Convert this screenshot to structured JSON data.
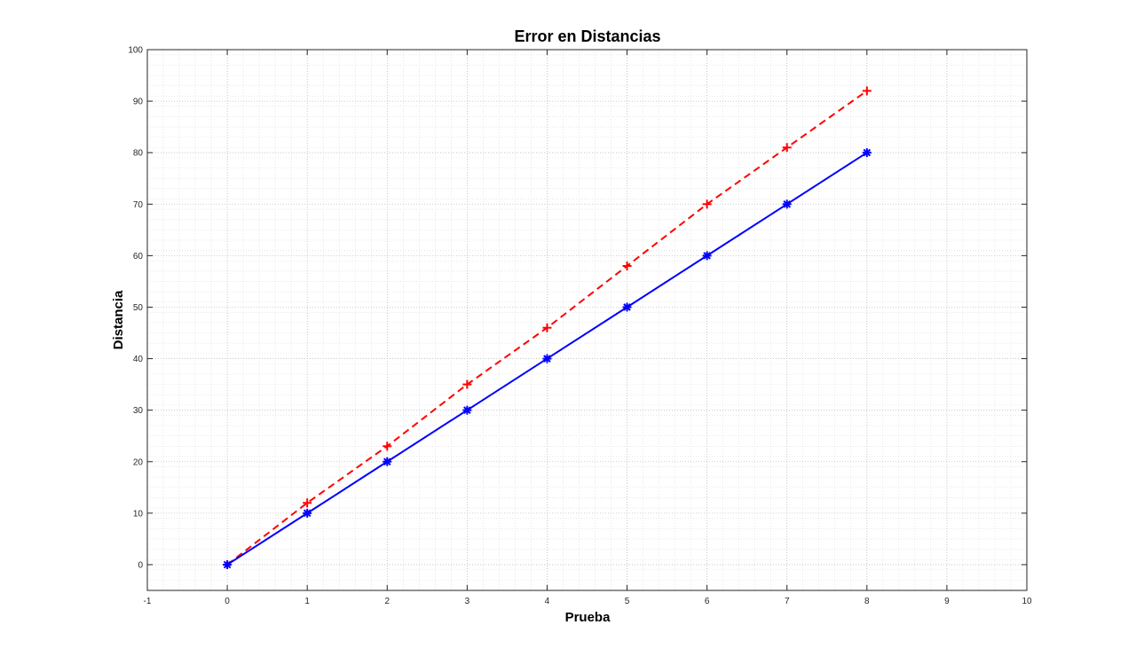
{
  "chart_data": {
    "type": "line",
    "title": "Error en Distancias",
    "xlabel": "Prueba",
    "ylabel": "Distancia",
    "xlim": [
      -1,
      10
    ],
    "ylim": [
      -5,
      100
    ],
    "x_ticks": [
      -1,
      0,
      1,
      2,
      3,
      4,
      5,
      6,
      7,
      8,
      9,
      10
    ],
    "x_tick_labels": [
      "-1",
      "0",
      "1",
      "2",
      "3",
      "4",
      "5",
      "6",
      "7",
      "8",
      "9",
      "10"
    ],
    "y_ticks": [
      0,
      10,
      20,
      30,
      40,
      50,
      60,
      70,
      80,
      90,
      100
    ],
    "y_tick_labels": [
      "0",
      "10",
      "20",
      "30",
      "40",
      "50",
      "60",
      "70",
      "80",
      "90",
      "100"
    ],
    "grid": "major and minor, dotted",
    "legend": "none",
    "x": [
      0,
      1,
      2,
      3,
      4,
      5,
      6,
      7,
      8
    ],
    "series": [
      {
        "values": [
          0,
          12,
          23,
          35,
          46,
          58,
          70,
          81,
          92
        ],
        "color": "#ff0000",
        "line_style": "dashed",
        "marker": "plus"
      },
      {
        "values": [
          0,
          10,
          20,
          30,
          40,
          50,
          60,
          70,
          80
        ],
        "color": "#0000ff",
        "line_style": "solid",
        "marker": "asterisk"
      }
    ]
  }
}
